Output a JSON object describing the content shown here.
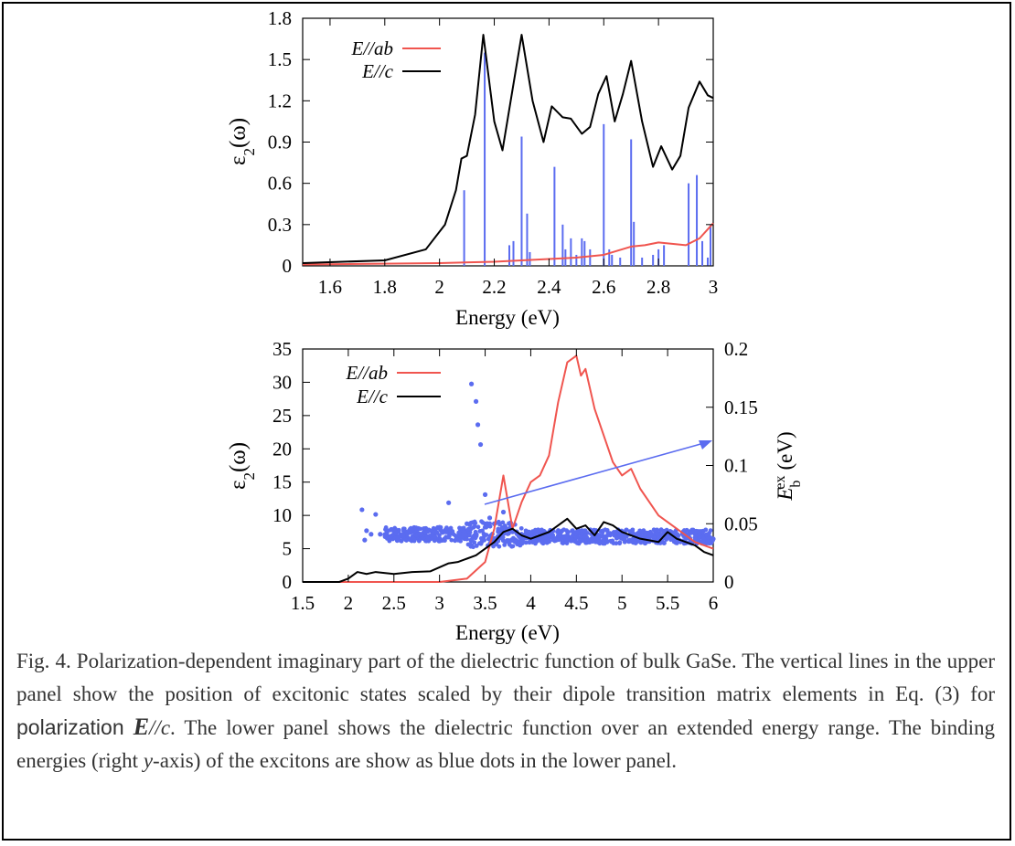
{
  "figure": {
    "top": {
      "ylabel": "ε",
      "ylabel_sub": "2",
      "ylabel_rest": "(ω)",
      "xlabel": "Energy (eV)",
      "legend": [
        {
          "name": "E//ab",
          "color": "#f0554f"
        },
        {
          "name": "E//c",
          "color": "#000000"
        }
      ],
      "xticks": [
        "1.6",
        "1.8",
        "2",
        "2.2",
        "2.4",
        "2.6",
        "2.8",
        "3"
      ],
      "yticks": [
        "0",
        "0.3",
        "0.6",
        "0.9",
        "1.2",
        "1.5",
        "1.8"
      ]
    },
    "bottom": {
      "ylabel": "ε",
      "ylabel_sub": "2",
      "ylabel_rest": "(ω)",
      "xlabel": "Energy (eV)",
      "y2label_main": "E",
      "y2label_sub": "b",
      "y2label_sup": "ex",
      "y2label_unit": "(eV)",
      "legend": [
        {
          "name": "E//ab",
          "color": "#f0554f"
        },
        {
          "name": "E//c",
          "color": "#000000"
        }
      ],
      "xticks": [
        "1.5",
        "2",
        "2.5",
        "3",
        "3.5",
        "4",
        "4.5",
        "5",
        "5.5",
        "6"
      ],
      "yticks": [
        "0",
        "5",
        "10",
        "15",
        "20",
        "25",
        "30",
        "35"
      ],
      "y2ticks": [
        "0",
        "0.05",
        "0.1",
        "0.15",
        "0.2"
      ]
    }
  },
  "chart_data": [
    {
      "type": "line",
      "title": "",
      "xlabel": "Energy (eV)",
      "ylabel": "ε2(ω)",
      "xlim": [
        1.5,
        3.0
      ],
      "ylim": [
        0,
        1.8
      ],
      "series": [
        {
          "name": "E//ab",
          "color": "#f0554f",
          "x": [
            1.5,
            2.0,
            2.2,
            2.3,
            2.4,
            2.5,
            2.6,
            2.65,
            2.7,
            2.75,
            2.8,
            2.85,
            2.9,
            2.95,
            3.0
          ],
          "y": [
            0.01,
            0.02,
            0.03,
            0.04,
            0.05,
            0.06,
            0.08,
            0.11,
            0.14,
            0.15,
            0.17,
            0.16,
            0.15,
            0.2,
            0.31
          ]
        },
        {
          "name": "E//c",
          "color": "#000000",
          "x": [
            1.5,
            1.8,
            1.95,
            2.02,
            2.06,
            2.08,
            2.1,
            2.13,
            2.16,
            2.2,
            2.23,
            2.26,
            2.3,
            2.34,
            2.38,
            2.41,
            2.45,
            2.48,
            2.52,
            2.55,
            2.58,
            2.61,
            2.64,
            2.67,
            2.7,
            2.74,
            2.78,
            2.81,
            2.85,
            2.88,
            2.91,
            2.95,
            2.98,
            3.0
          ],
          "y": [
            0.02,
            0.04,
            0.12,
            0.3,
            0.55,
            0.78,
            0.8,
            1.1,
            1.68,
            1.05,
            0.84,
            1.2,
            1.68,
            1.2,
            0.9,
            1.16,
            1.08,
            1.07,
            0.96,
            1.01,
            1.25,
            1.38,
            1.05,
            1.25,
            1.49,
            1.05,
            0.72,
            0.87,
            0.7,
            0.8,
            1.15,
            1.34,
            1.24,
            1.22
          ]
        }
      ],
      "excitonic_lines": {
        "color": "#5b6cf0",
        "x": [
          2.09,
          2.165,
          2.255,
          2.27,
          2.3,
          2.32,
          2.33,
          2.42,
          2.45,
          2.46,
          2.48,
          2.5,
          2.52,
          2.53,
          2.55,
          2.6,
          2.62,
          2.63,
          2.66,
          2.7,
          2.71,
          2.74,
          2.78,
          2.8,
          2.82,
          2.91,
          2.94,
          2.96,
          2.98,
          2.99
        ],
        "y": [
          0.55,
          1.55,
          0.15,
          0.18,
          0.94,
          0.38,
          0.1,
          0.72,
          0.3,
          0.12,
          0.2,
          0.08,
          0.2,
          0.18,
          0.12,
          1.03,
          0.12,
          0.08,
          0.06,
          0.92,
          0.32,
          0.06,
          0.08,
          0.12,
          0.15,
          0.6,
          0.66,
          0.18,
          0.06,
          0.3
        ]
      }
    },
    {
      "type": "line",
      "title": "",
      "xlabel": "Energy (eV)",
      "ylabel": "ε2(ω)",
      "y2label": "E_b^ex (eV)",
      "xlim": [
        1.5,
        6.0
      ],
      "ylim": [
        0,
        35
      ],
      "y2lim": [
        0,
        0.2
      ],
      "series": [
        {
          "name": "E//ab",
          "color": "#f0554f",
          "x": [
            1.5,
            2.5,
            3.0,
            3.3,
            3.5,
            3.6,
            3.65,
            3.7,
            3.75,
            3.8,
            3.9,
            4.0,
            4.1,
            4.2,
            4.3,
            4.4,
            4.5,
            4.55,
            4.6,
            4.65,
            4.7,
            4.8,
            4.9,
            5.0,
            5.1,
            5.2,
            5.3,
            5.4,
            5.5,
            5.6,
            5.7,
            5.8,
            5.9,
            6.0
          ],
          "y": [
            0,
            0,
            0,
            0.5,
            3,
            8,
            12,
            16,
            12,
            8,
            12,
            15,
            16,
            19,
            27,
            33,
            34,
            31,
            32,
            29,
            26,
            22,
            18,
            16,
            17,
            14,
            12,
            10,
            9,
            8,
            7,
            6,
            5.5,
            5
          ]
        },
        {
          "name": "E//c",
          "color": "#000000",
          "x": [
            1.5,
            1.9,
            2.0,
            2.1,
            2.2,
            2.3,
            2.5,
            2.7,
            2.9,
            3.0,
            3.1,
            3.2,
            3.3,
            3.4,
            3.5,
            3.6,
            3.7,
            3.8,
            3.9,
            4.0,
            4.1,
            4.2,
            4.3,
            4.4,
            4.5,
            4.6,
            4.7,
            4.8,
            4.9,
            5.0,
            5.2,
            5.4,
            5.5,
            5.6,
            5.8,
            5.9,
            6.0
          ],
          "y": [
            0,
            0,
            0.5,
            1.5,
            1.2,
            1.5,
            1.2,
            1.5,
            1.6,
            2.2,
            2.8,
            3.0,
            3.5,
            4.0,
            5.0,
            6.0,
            7.5,
            8.0,
            7.0,
            6.5,
            7.0,
            7.5,
            8.5,
            9.5,
            8.0,
            8.5,
            7.0,
            9.0,
            8.5,
            7.5,
            6.5,
            6.0,
            7.5,
            6.5,
            5.5,
            4.5,
            4.0
          ]
        }
      ],
      "binding_energy_dots": {
        "color": "#5b6cf0",
        "x": [
          2.15,
          2.3,
          2.2,
          2.25,
          2.18,
          2.35,
          2.6,
          2.8,
          3.0,
          3.1,
          3.3,
          3.35,
          3.4,
          3.42,
          3.45,
          3.5,
          3.55,
          3.6,
          3.65,
          3.7,
          3.8,
          3.9,
          4.0,
          4.2,
          4.4,
          4.6,
          4.8,
          5.0,
          5.2,
          5.4,
          5.6,
          5.8,
          6.0
        ],
        "y": [
          0.062,
          0.058,
          0.044,
          0.041,
          0.036,
          0.041,
          0.04,
          0.041,
          0.047,
          0.068,
          0.05,
          0.17,
          0.155,
          0.135,
          0.118,
          0.075,
          0.055,
          0.05,
          0.045,
          0.06,
          0.043,
          0.041,
          0.04,
          0.04,
          0.04,
          0.039,
          0.039,
          0.039,
          0.039,
          0.038,
          0.038,
          0.038,
          0.037
        ]
      }
    }
  ],
  "caption": {
    "p1": "Fig. 4. Polarization-dependent imaginary part of the dielectric function of bulk GaSe. The vertical lines in the upper panel show the position of excitonic states scaled by their dipole transition matrix elements in Eq. (3) for ",
    "polarization_word": "polarization",
    "pol_E": "E",
    "pol_c": "//c",
    "p2": ". The lower panel shows the dielectric function over an extended energy range. The binding energies (right ",
    "y_axis_italic": "y",
    "p3": "-axis) of the excitons are show as blue dots in the lower panel."
  }
}
